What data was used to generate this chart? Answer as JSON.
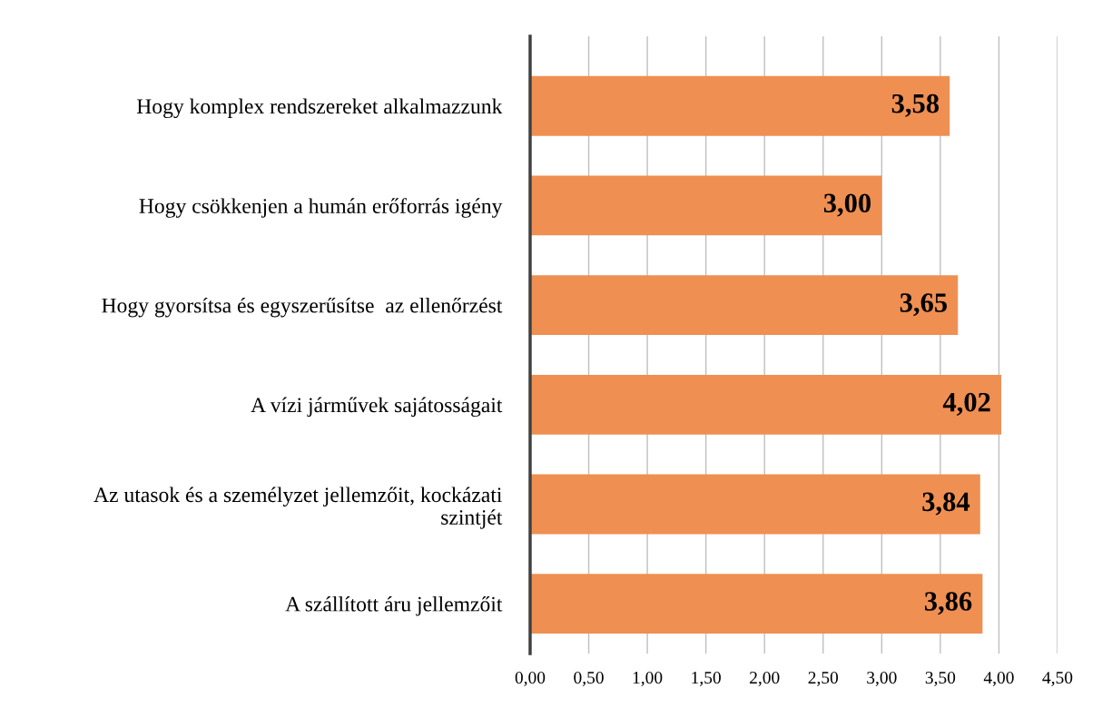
{
  "chart_data": {
    "type": "bar",
    "orientation": "horizontal",
    "categories": [
      "Hogy komplex rendszereket alkalmazzunk",
      "Hogy csökkenjen a humán erőforrás igény",
      "Hogy gyorsítsa és egyszerűsítse  az ellenőrzést",
      "A vízi járművek sajátosságait",
      "Az utasok és a személyzet jellemzőit, kockázati\nszintjét",
      "A szállított áru jellemzőit"
    ],
    "values": [
      3.58,
      3.0,
      3.65,
      4.02,
      3.84,
      3.86
    ],
    "value_labels": [
      "3,58",
      "3,00",
      "3,65",
      "4,02",
      "3,84",
      "3,86"
    ],
    "color": "#ef8f52",
    "xlim": [
      0,
      4.5
    ],
    "xticks": [
      {
        "value": 0,
        "label": "0,00"
      },
      {
        "value": 0.5,
        "label": "0,50"
      },
      {
        "value": 1,
        "label": "1,00"
      },
      {
        "value": 1.5,
        "label": "1,50"
      },
      {
        "value": 2,
        "label": "2,00"
      },
      {
        "value": 2.5,
        "label": "2,50"
      },
      {
        "value": 3,
        "label": "3,00"
      },
      {
        "value": 3.5,
        "label": "3,50"
      },
      {
        "value": 4,
        "label": "4,00"
      },
      {
        "value": 4.5,
        "label": "4,50"
      }
    ],
    "grid": "x"
  }
}
